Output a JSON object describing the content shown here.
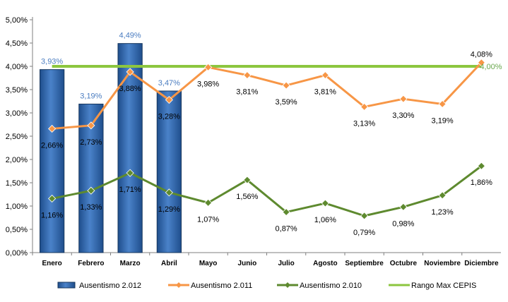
{
  "chart_data": {
    "type": "bar",
    "categories": [
      "Enero",
      "Febrero",
      "Marzo",
      "Abril",
      "Mayo",
      "Junio",
      "Julio",
      "Agosto",
      "Septiembre",
      "Octubre",
      "Noviembre",
      "Diciembre"
    ],
    "ylim": [
      0,
      5
    ],
    "y_ticks": [
      "0,00%",
      "0,50%",
      "1,00%",
      "1,50%",
      "2,00%",
      "2,50%",
      "3,00%",
      "3,50%",
      "4,00%",
      "4,50%",
      "5,00%"
    ],
    "grid": false,
    "legend_position": "bottom",
    "series": [
      {
        "name": "Ausentismo 2.012",
        "kind": "bar",
        "color": "#2e63a8",
        "label_color": "#4a7cc0",
        "values": [
          3.93,
          3.19,
          4.49,
          3.47,
          null,
          null,
          null,
          null,
          null,
          null,
          null,
          null
        ],
        "labels": [
          "3,93%",
          "3,19%",
          "4,49%",
          "3,47%",
          "",
          "",
          "",
          "",
          "",
          "",
          "",
          ""
        ]
      },
      {
        "name": "Ausentismo 2.011",
        "kind": "line",
        "color": "#f79646",
        "label_color": "#000000",
        "values": [
          2.66,
          2.73,
          3.88,
          3.28,
          3.98,
          3.81,
          3.59,
          3.81,
          3.13,
          3.3,
          3.19,
          4.08
        ],
        "labels": [
          "2,66%",
          "2,73%",
          "3,88%",
          "3,28%",
          "3,98%",
          "3,81%",
          "3,59%",
          "3,81%",
          "3,13%",
          "3,30%",
          "3,19%",
          "4,08%"
        ]
      },
      {
        "name": "Ausentismo 2.010",
        "kind": "line",
        "color": "#5e8a2f",
        "label_color": "#000000",
        "values": [
          1.16,
          1.33,
          1.71,
          1.29,
          1.07,
          1.56,
          0.87,
          1.06,
          0.79,
          0.98,
          1.23,
          1.86
        ],
        "labels": [
          "1,16%",
          "1,33%",
          "1,71%",
          "1,29%",
          "1,07%",
          "1,56%",
          "0,87%",
          "1,06%",
          "0,79%",
          "0,98%",
          "1,23%",
          "1,86%"
        ]
      },
      {
        "name": "Rango Max CEPIS",
        "kind": "line",
        "color": "#8cc63f",
        "label_color": "#6aa84f",
        "values": [
          4.0,
          4.0,
          4.0,
          4.0,
          4.0,
          4.0,
          4.0,
          4.0,
          4.0,
          4.0,
          4.0,
          4.0
        ],
        "labels": [
          "",
          "",
          "",
          "",
          "",
          "",
          "",
          "",
          "",
          "",
          "",
          "4,00%"
        ]
      }
    ]
  }
}
